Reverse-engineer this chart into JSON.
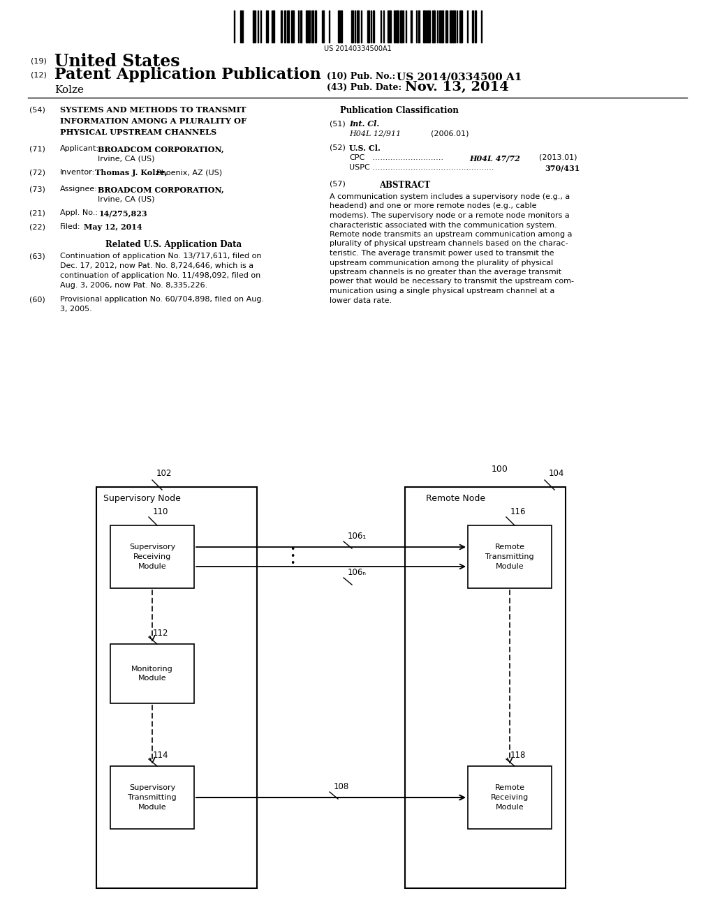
{
  "background_color": "#ffffff",
  "page_width": 10.24,
  "page_height": 13.2,
  "barcode_text": "US 20140334500A1",
  "header": {
    "country_prefix": "(19)",
    "country": "United States",
    "type_prefix": "(12)",
    "type": "Patent Application Publication",
    "pub_no_prefix": "(10) Pub. No.:",
    "pub_no": "US 2014/0334500 A1",
    "inventor": "Kolze",
    "date_prefix": "(43) Pub. Date:",
    "date": "Nov. 13, 2014"
  },
  "right_col": {
    "pub_class_title": "Publication Classification",
    "abstract_tag": "(57)",
    "abstract_title": "ABSTRACT",
    "abstract_text": "A communication system includes a supervisory node (e.g., a headend) and one or more remote nodes (e.g., cable modems). The supervisory node or a remote node monitors a characteristic associated with the communication system. Remote node transmits an upstream communication among a plurality of physical upstream channels based on the charac-teristic. The average transmit power used to transmit the upstream communication among the plurality of physical upstream channels is no greater than the average transmit power that would be necessary to transmit the upstream com-munication using a single physical upstream channel at a lower data rate."
  },
  "diagram": {
    "fig_number": "100",
    "supervisory_box_label": "102",
    "remote_box_label": "104",
    "sup_node_title": "Supervisory Node",
    "rem_node_title": "Remote Node",
    "srm_label": "Supervisory\nReceiving\nModule",
    "srm_number": "110",
    "rtm_label": "Remote\nTransmitting\nModule",
    "rtm_number": "116",
    "mm_label": "Monitoring\nModule",
    "mm_number": "112",
    "stm_label": "Supervisory\nTransmitting\nModule",
    "stm_number": "114",
    "rrm_label": "Remote\nReceiving\nModule",
    "rrm_number": "118",
    "channel_label_1": "106₁",
    "channel_label_n": "106ₙ",
    "channel_108": "108"
  }
}
